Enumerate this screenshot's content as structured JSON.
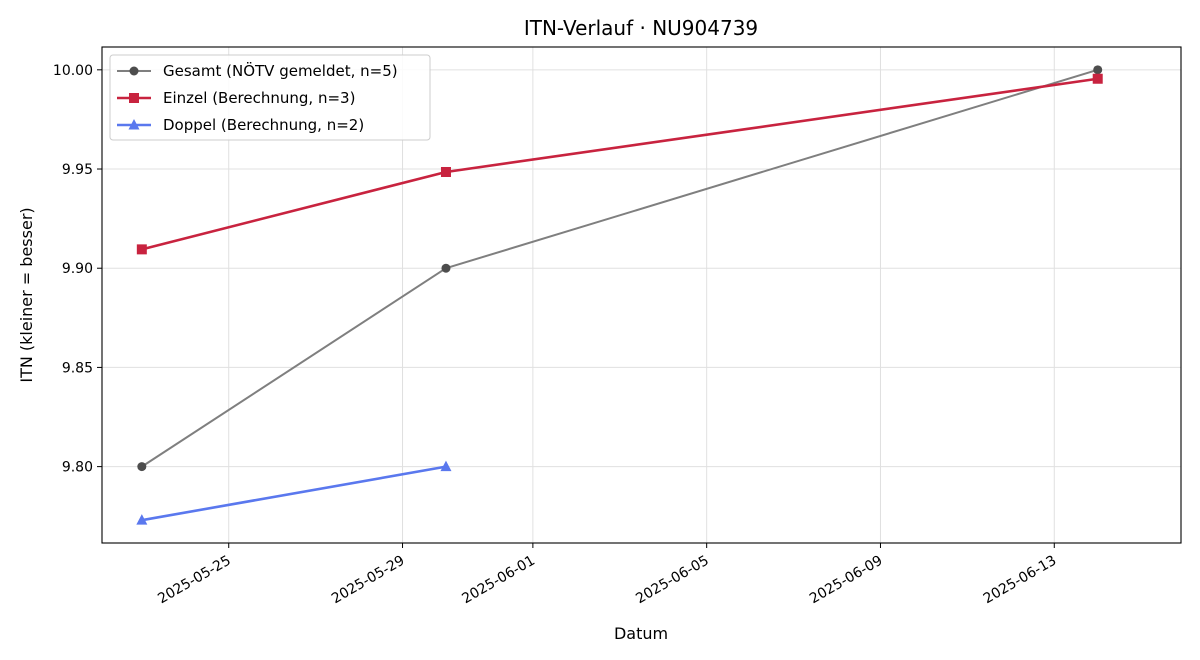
{
  "chart_data": {
    "type": "line",
    "title": "ITN-Verlauf · NU904739",
    "xlabel": "Datum",
    "ylabel": "ITN  (kleiner = besser)",
    "x_axis_type": "date",
    "x_ticks": [
      "2025-05-25",
      "2025-05-29",
      "2025-06-01",
      "2025-06-05",
      "2025-06-09",
      "2025-06-13"
    ],
    "xlim": [
      "2025-05-22T02:00",
      "2025-06-15T22:00"
    ],
    "y_ticks": [
      9.8,
      9.85,
      9.9,
      9.95,
      10.0
    ],
    "y_tick_labels": [
      "9.80",
      "9.85",
      "9.90",
      "9.95",
      "10.00"
    ],
    "ylim": [
      9.7615,
      10.0115
    ],
    "grid": true,
    "legend_position": "top-left",
    "series": [
      {
        "name": "Gesamt (NÖTV gemeldet, n=5)",
        "color": "#7f7f7f",
        "marker_color": "#4d4d4d",
        "marker": "circle",
        "x": [
          "2025-05-23",
          "2025-05-30",
          "2025-06-14"
        ],
        "y": [
          9.8,
          9.9,
          10.0
        ]
      },
      {
        "name": "Einzel (Berechnung, n=3)",
        "color": "#c8233f",
        "marker_color": "#c8233f",
        "marker": "square",
        "x": [
          "2025-05-23",
          "2025-05-30",
          "2025-06-14"
        ],
        "y": [
          9.9095,
          9.9485,
          9.9955
        ]
      },
      {
        "name": "Doppel (Berechnung, n=2)",
        "color": "#5a78ee",
        "marker_color": "#5a78ee",
        "marker": "triangle",
        "x": [
          "2025-05-23",
          "2025-05-30"
        ],
        "y": [
          9.773,
          9.8
        ]
      }
    ]
  }
}
